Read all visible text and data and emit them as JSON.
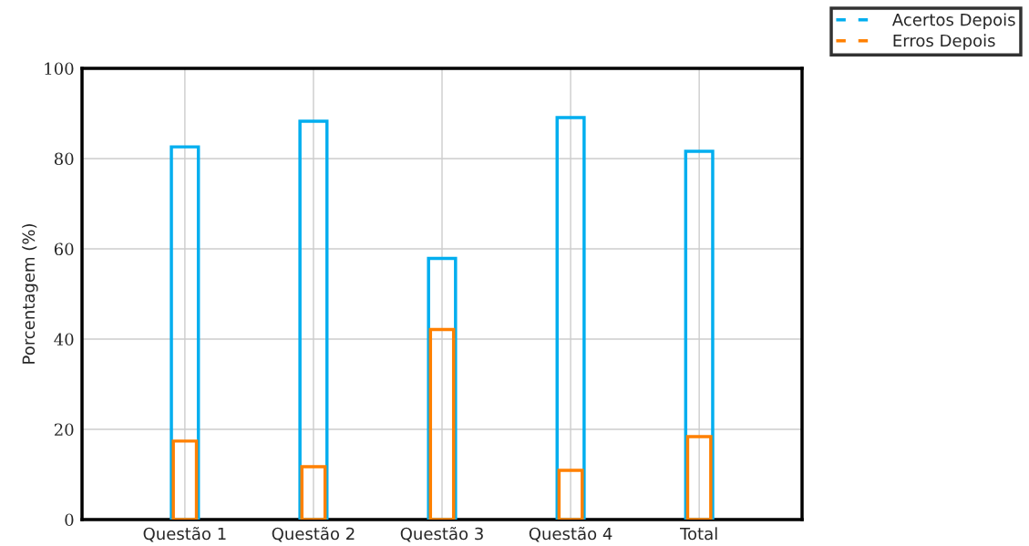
{
  "chart_data": {
    "type": "bar",
    "ylabel": "Porcentagem (%)",
    "categories": [
      "Questão 1",
      "Questão 2",
      "Questão 3",
      "Questão 4",
      "Total"
    ],
    "series": [
      {
        "name": "Acertos Depois",
        "color": "#00aeef",
        "values": [
          82.6,
          88.3,
          57.9,
          89.1,
          81.6
        ]
      },
      {
        "name": "Erros Depois",
        "color": "#ff8000",
        "values": [
          17.4,
          11.7,
          42.1,
          10.9,
          18.4
        ]
      }
    ],
    "ylim": [
      0,
      100
    ],
    "yticks": [
      0,
      20,
      40,
      60,
      80,
      100
    ],
    "grid": true,
    "legend": "top right"
  }
}
